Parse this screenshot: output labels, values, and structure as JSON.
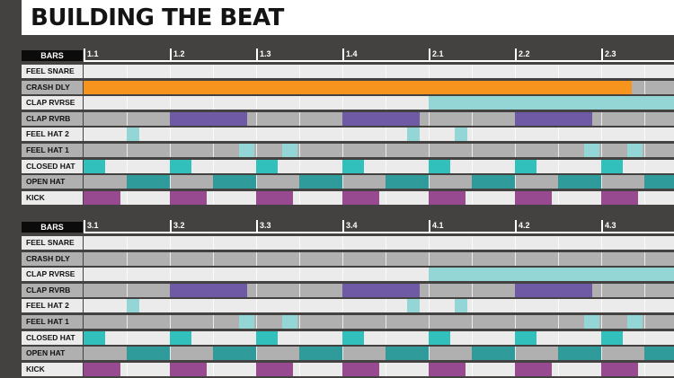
{
  "title": "BUILDING THE BEAT",
  "colors": {
    "orange": "#f7941d",
    "purple": "#6f5ba5",
    "teal_light": "#93d6d5",
    "teal_mid": "#2f9b9a",
    "teal_bright": "#32c0bd",
    "magenta": "#974a8f",
    "light_gray": "#ebebeb",
    "mid_gray": "#b0b0b0"
  },
  "panels": [
    {
      "bars_label": "BARS",
      "bar_markers": [
        "1.1",
        "1.2",
        "1.3",
        "1.4",
        "2.1",
        "2.2",
        "2.3"
      ],
      "rows": [
        {
          "label": "FEEL SNARE",
          "shade": false,
          "notes": []
        },
        {
          "label": "CRASH DLY",
          "shade": true,
          "notes": [
            {
              "start": 0,
              "end": 12.7,
              "color": "orange"
            }
          ]
        },
        {
          "label": "CLAP RVRSE",
          "shade": false,
          "notes": [
            {
              "start": 8,
              "end": 14,
              "color": "teal_light"
            }
          ]
        },
        {
          "label": "CLAP RVRB",
          "shade": true,
          "notes": [
            {
              "start": 2,
              "end": 3.8,
              "color": "purple"
            },
            {
              "start": 6,
              "end": 7.8,
              "color": "purple"
            },
            {
              "start": 10,
              "end": 11.8,
              "color": "purple"
            }
          ]
        },
        {
          "label": "FEEL HAT 2",
          "shade": false,
          "notes": [
            {
              "start": 1,
              "end": 1.3,
              "color": "teal_light"
            },
            {
              "start": 7.5,
              "end": 7.8,
              "color": "teal_light"
            },
            {
              "start": 8.6,
              "end": 8.9,
              "color": "teal_light"
            }
          ]
        },
        {
          "label": "FEEL HAT 1",
          "shade": true,
          "notes": [
            {
              "start": 3.6,
              "end": 3.95,
              "color": "teal_light"
            },
            {
              "start": 4.6,
              "end": 4.95,
              "color": "teal_light"
            },
            {
              "start": 11.6,
              "end": 11.95,
              "color": "teal_light"
            },
            {
              "start": 12.6,
              "end": 12.95,
              "color": "teal_light"
            }
          ]
        },
        {
          "label": "CLOSED HAT",
          "shade": false,
          "notes": [
            {
              "start": 0,
              "end": 0.5,
              "color": "teal_bright"
            },
            {
              "start": 2,
              "end": 2.5,
              "color": "teal_bright"
            },
            {
              "start": 4,
              "end": 4.5,
              "color": "teal_bright"
            },
            {
              "start": 6,
              "end": 6.5,
              "color": "teal_bright"
            },
            {
              "start": 8,
              "end": 8.5,
              "color": "teal_bright"
            },
            {
              "start": 10,
              "end": 10.5,
              "color": "teal_bright"
            },
            {
              "start": 12,
              "end": 12.5,
              "color": "teal_bright"
            }
          ]
        },
        {
          "label": "OPEN HAT",
          "shade": true,
          "notes": [
            {
              "start": 1,
              "end": 2,
              "color": "teal_mid"
            },
            {
              "start": 3,
              "end": 4,
              "color": "teal_mid"
            },
            {
              "start": 5,
              "end": 6,
              "color": "teal_mid"
            },
            {
              "start": 7,
              "end": 8,
              "color": "teal_mid"
            },
            {
              "start": 9,
              "end": 10,
              "color": "teal_mid"
            },
            {
              "start": 11,
              "end": 12,
              "color": "teal_mid"
            },
            {
              "start": 13,
              "end": 14,
              "color": "teal_mid"
            }
          ]
        },
        {
          "label": "KICK",
          "shade": false,
          "notes": [
            {
              "start": 0,
              "end": 0.85,
              "color": "magenta"
            },
            {
              "start": 2,
              "end": 2.85,
              "color": "magenta"
            },
            {
              "start": 4,
              "end": 4.85,
              "color": "magenta"
            },
            {
              "start": 6,
              "end": 6.85,
              "color": "magenta"
            },
            {
              "start": 8,
              "end": 8.85,
              "color": "magenta"
            },
            {
              "start": 10,
              "end": 10.85,
              "color": "magenta"
            },
            {
              "start": 12,
              "end": 12.85,
              "color": "magenta"
            }
          ]
        }
      ]
    },
    {
      "bars_label": "BARS",
      "bar_markers": [
        "3.1",
        "3.2",
        "3.3",
        "3.4",
        "4.1",
        "4.2",
        "4.3"
      ],
      "rows": [
        {
          "label": "FEEL SNARE",
          "shade": false,
          "notes": []
        },
        {
          "label": "CRASH DLY",
          "shade": true,
          "notes": []
        },
        {
          "label": "CLAP RVRSE",
          "shade": false,
          "notes": [
            {
              "start": 8,
              "end": 14,
              "color": "teal_light"
            }
          ]
        },
        {
          "label": "CLAP RVRB",
          "shade": true,
          "notes": [
            {
              "start": 2,
              "end": 3.8,
              "color": "purple"
            },
            {
              "start": 6,
              "end": 7.8,
              "color": "purple"
            },
            {
              "start": 10,
              "end": 11.8,
              "color": "purple"
            }
          ]
        },
        {
          "label": "FEEL HAT 2",
          "shade": false,
          "notes": [
            {
              "start": 1,
              "end": 1.3,
              "color": "teal_light"
            },
            {
              "start": 7.5,
              "end": 7.8,
              "color": "teal_light"
            },
            {
              "start": 8.6,
              "end": 8.9,
              "color": "teal_light"
            }
          ]
        },
        {
          "label": "FEEL HAT 1",
          "shade": true,
          "notes": [
            {
              "start": 3.6,
              "end": 3.95,
              "color": "teal_light"
            },
            {
              "start": 4.6,
              "end": 4.95,
              "color": "teal_light"
            },
            {
              "start": 11.6,
              "end": 11.95,
              "color": "teal_light"
            },
            {
              "start": 12.6,
              "end": 12.95,
              "color": "teal_light"
            }
          ]
        },
        {
          "label": "CLOSED HAT",
          "shade": false,
          "notes": [
            {
              "start": 0,
              "end": 0.5,
              "color": "teal_bright"
            },
            {
              "start": 2,
              "end": 2.5,
              "color": "teal_bright"
            },
            {
              "start": 4,
              "end": 4.5,
              "color": "teal_bright"
            },
            {
              "start": 6,
              "end": 6.5,
              "color": "teal_bright"
            },
            {
              "start": 8,
              "end": 8.5,
              "color": "teal_bright"
            },
            {
              "start": 10,
              "end": 10.5,
              "color": "teal_bright"
            },
            {
              "start": 12,
              "end": 12.5,
              "color": "teal_bright"
            }
          ]
        },
        {
          "label": "OPEN HAT",
          "shade": true,
          "notes": [
            {
              "start": 1,
              "end": 2,
              "color": "teal_mid"
            },
            {
              "start": 3,
              "end": 4,
              "color": "teal_mid"
            },
            {
              "start": 5,
              "end": 6,
              "color": "teal_mid"
            },
            {
              "start": 7,
              "end": 8,
              "color": "teal_mid"
            },
            {
              "start": 9,
              "end": 10,
              "color": "teal_mid"
            },
            {
              "start": 11,
              "end": 12,
              "color": "teal_mid"
            },
            {
              "start": 13,
              "end": 14,
              "color": "teal_mid"
            }
          ]
        },
        {
          "label": "KICK",
          "shade": false,
          "notes": [
            {
              "start": 0,
              "end": 0.85,
              "color": "magenta"
            },
            {
              "start": 2,
              "end": 2.85,
              "color": "magenta"
            },
            {
              "start": 4,
              "end": 4.85,
              "color": "magenta"
            },
            {
              "start": 6,
              "end": 6.85,
              "color": "magenta"
            },
            {
              "start": 8,
              "end": 8.85,
              "color": "magenta"
            },
            {
              "start": 10,
              "end": 10.85,
              "color": "magenta"
            },
            {
              "start": 12,
              "end": 12.85,
              "color": "magenta"
            }
          ]
        }
      ]
    }
  ]
}
